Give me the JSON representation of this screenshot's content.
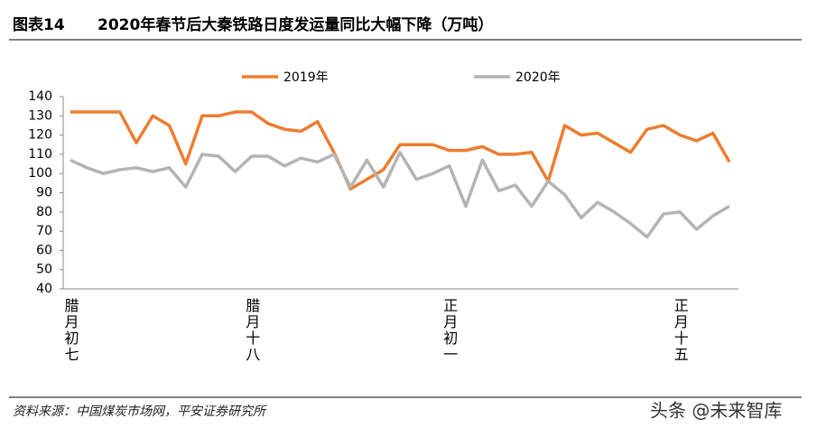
{
  "chart_data": {
    "type": "line",
    "figure_label": "图表14",
    "title": "2020年春节后大秦铁路日度发运量同比大幅下降（万吨）",
    "categories": [
      "腊月初七",
      null,
      null,
      null,
      null,
      null,
      null,
      null,
      null,
      null,
      null,
      "腊月十八",
      null,
      null,
      null,
      null,
      null,
      null,
      null,
      null,
      null,
      null,
      null,
      "正月初一",
      null,
      null,
      null,
      null,
      null,
      null,
      null,
      null,
      null,
      null,
      null,
      null,
      null,
      "正月十五",
      null,
      null,
      null
    ],
    "series": [
      {
        "name": "2019年",
        "color": "#ed7d31",
        "values": [
          132,
          132,
          132,
          132,
          116,
          130,
          125,
          105,
          130,
          130,
          132,
          132,
          126,
          123,
          122,
          127,
          111,
          92,
          97,
          102,
          115,
          115,
          115,
          112,
          112,
          114,
          110,
          110,
          111,
          96,
          125,
          120,
          121,
          116,
          111,
          123,
          125,
          120,
          117,
          121,
          106
        ]
      },
      {
        "name": "2020年",
        "color": "#b4b4b4",
        "values": [
          107,
          103,
          100,
          102,
          103,
          101,
          103,
          93,
          110,
          109,
          101,
          109,
          109,
          104,
          108,
          106,
          110,
          93,
          107,
          93,
          111,
          97,
          100,
          104,
          83,
          107,
          91,
          94,
          83,
          96,
          89,
          77,
          85,
          80,
          74,
          67,
          79,
          80,
          71,
          78,
          83
        ]
      }
    ],
    "ylim": [
      40,
      140
    ],
    "yticks": [
      40,
      50,
      60,
      70,
      80,
      90,
      100,
      110,
      120,
      130,
      140
    ],
    "source": "资料来源：中国煤炭市场网，平安证券研究所",
    "watermark": "头条 @未来智库"
  }
}
